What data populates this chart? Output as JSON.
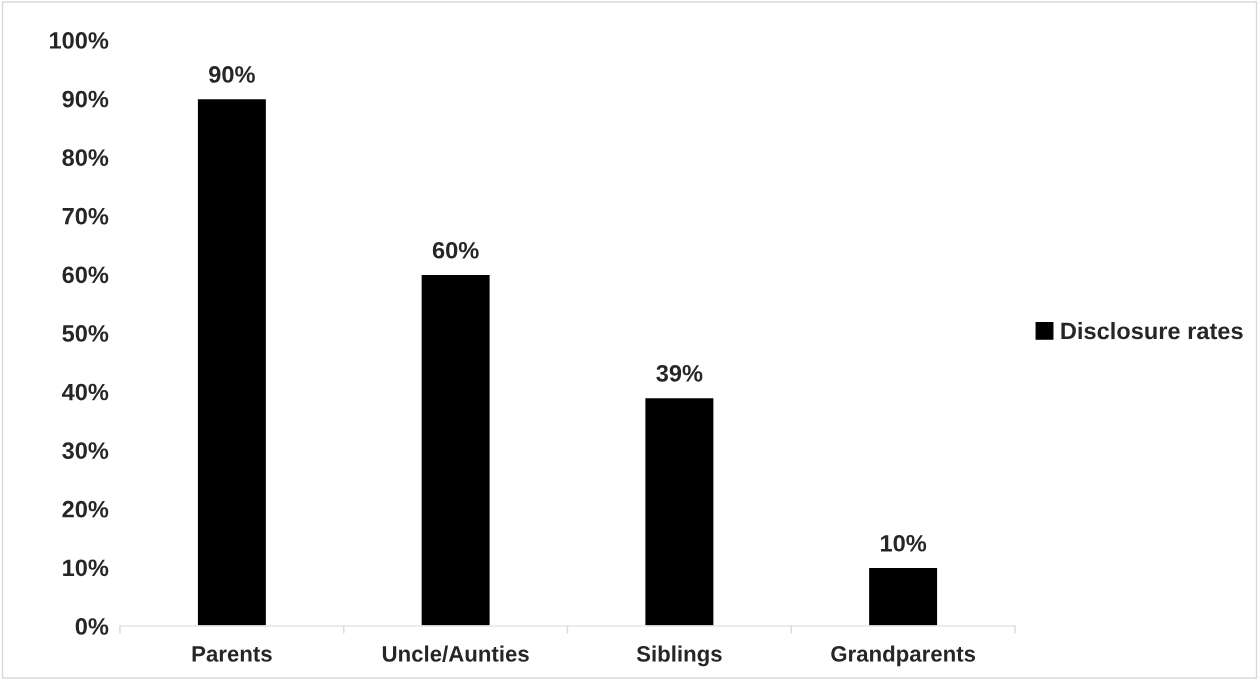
{
  "chart_data": {
    "type": "bar",
    "categories": [
      "Parents",
      "Uncle/Aunties",
      "Siblings",
      "Grandparents"
    ],
    "series": [
      {
        "name": "Disclosure rates",
        "color": "#000000",
        "values": [
          90,
          60,
          39,
          10
        ],
        "value_labels": [
          "90%",
          "60%",
          "39%",
          "10%"
        ]
      }
    ],
    "ylim": [
      0,
      100
    ],
    "yticks": [
      {
        "value": 0,
        "label": "0%"
      },
      {
        "value": 10,
        "label": "10%"
      },
      {
        "value": 20,
        "label": "20%"
      },
      {
        "value": 30,
        "label": "30%"
      },
      {
        "value": 40,
        "label": "40%"
      },
      {
        "value": 50,
        "label": "50%"
      },
      {
        "value": 60,
        "label": "60%"
      },
      {
        "value": 70,
        "label": "70%"
      },
      {
        "value": 80,
        "label": "80%"
      },
      {
        "value": 90,
        "label": "90%"
      },
      {
        "value": 100,
        "label": "100%"
      }
    ],
    "grid": false,
    "legend": "right"
  }
}
